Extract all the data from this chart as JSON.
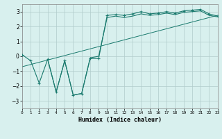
{
  "title": "",
  "xlabel": "Humidex (Indice chaleur)",
  "bg_color": "#d8f0ee",
  "grid_color": "#b0cccb",
  "line_color": "#1a7a6e",
  "xlim": [
    0,
    23
  ],
  "ylim": [
    -3.5,
    3.5
  ],
  "xticks": [
    0,
    1,
    2,
    3,
    4,
    5,
    6,
    7,
    8,
    9,
    10,
    11,
    12,
    13,
    14,
    15,
    16,
    17,
    18,
    19,
    20,
    21,
    22,
    23
  ],
  "yticks": [
    -3,
    -2,
    -1,
    0,
    1,
    2,
    3
  ],
  "curve1_x": [
    0,
    1,
    2,
    3,
    4,
    5,
    6,
    7,
    8,
    9,
    10,
    11,
    12,
    13,
    14,
    15,
    16,
    17,
    18,
    19,
    20,
    21,
    22,
    23
  ],
  "curve1_y": [
    0.1,
    -0.3,
    -1.8,
    -0.2,
    -2.4,
    -0.3,
    -2.6,
    -2.5,
    -0.15,
    -0.15,
    2.75,
    2.8,
    2.75,
    2.85,
    3.0,
    2.85,
    2.9,
    3.0,
    2.9,
    3.05,
    3.1,
    3.15,
    2.85,
    2.7
  ],
  "curve2_x": [
    3,
    4,
    5,
    6,
    7,
    8,
    9,
    10,
    11,
    12,
    13,
    14,
    15,
    16,
    17,
    18,
    19,
    20,
    21,
    22,
    23
  ],
  "curve2_y": [
    -0.2,
    -2.4,
    -0.3,
    -2.6,
    -2.5,
    -0.1,
    0.0,
    2.6,
    2.7,
    2.6,
    2.7,
    2.85,
    2.75,
    2.8,
    2.9,
    2.8,
    2.95,
    3.0,
    3.05,
    2.75,
    2.65
  ],
  "trend_x": [
    0,
    23
  ],
  "trend_y": [
    -0.7,
    2.75
  ]
}
